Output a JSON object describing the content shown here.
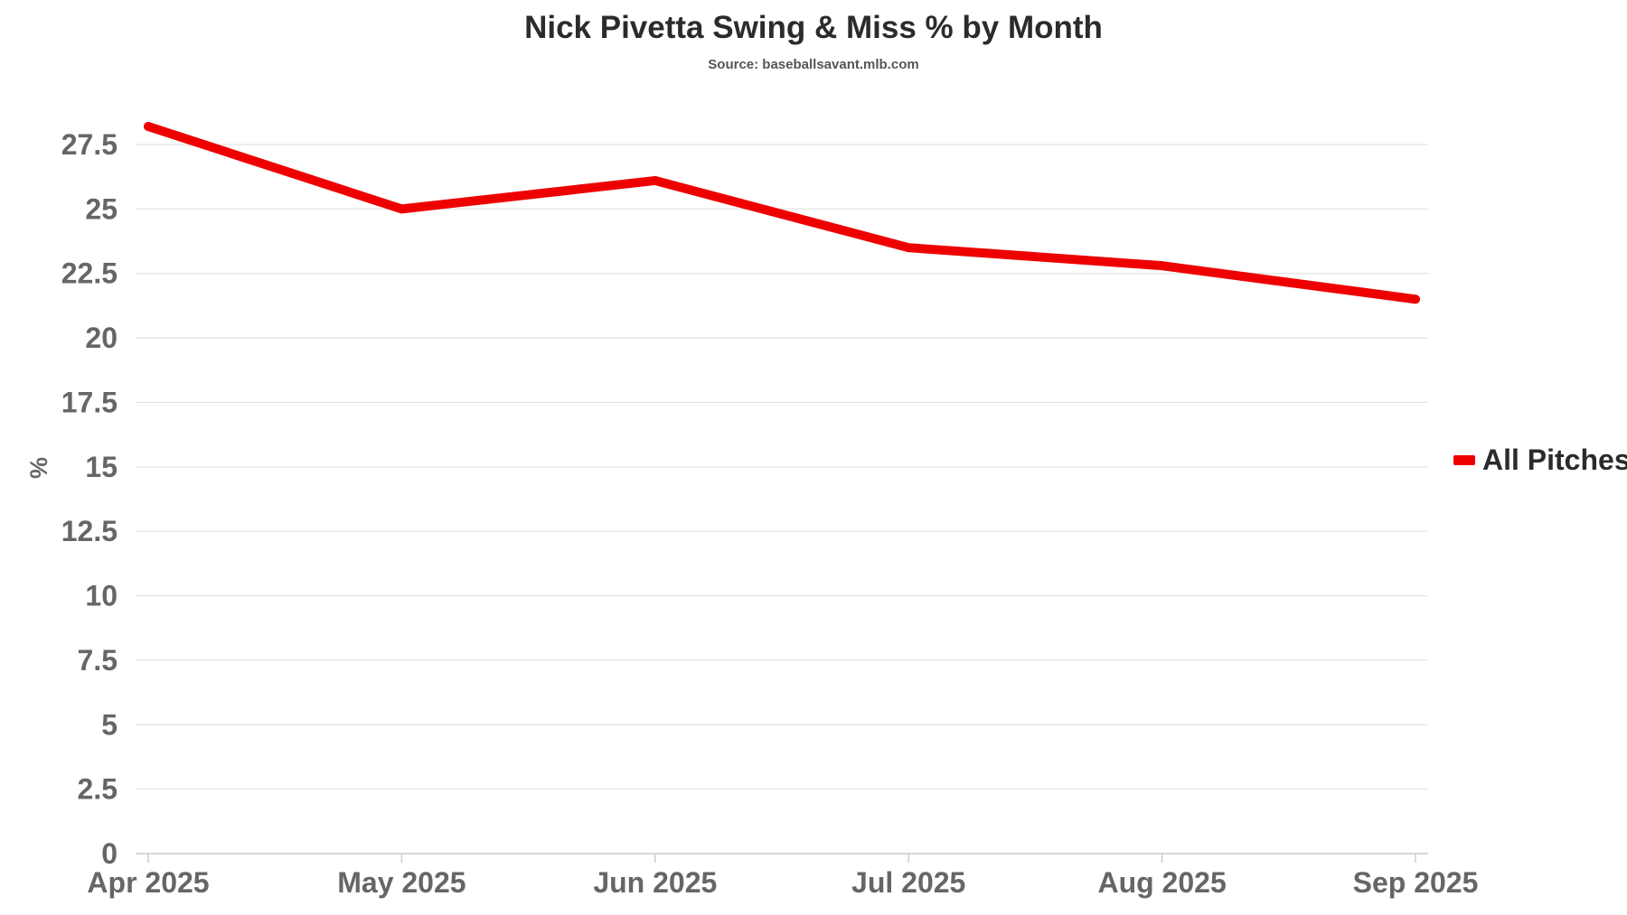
{
  "chart_data": {
    "type": "line",
    "title": "Nick Pivetta Swing & Miss % by Month",
    "subtitle": "Source: baseballsavant.mlb.com",
    "xlabel": "",
    "ylabel": "%",
    "categories": [
      "Apr 2025",
      "May 2025",
      "Jun 2025",
      "Jul 2025",
      "Aug 2025",
      "Sep 2025"
    ],
    "yticks": [
      "0",
      "2.5",
      "5",
      "7.5",
      "10",
      "12.5",
      "15",
      "17.5",
      "20",
      "22.5",
      "25",
      "27.5"
    ],
    "ylim": [
      0,
      27.5
    ],
    "grid": true,
    "legend": "right",
    "series": [
      {
        "name": "All Pitches",
        "color": "#ee0000",
        "values": [
          28.2,
          25.0,
          26.1,
          23.5,
          22.8,
          21.5
        ]
      }
    ]
  }
}
